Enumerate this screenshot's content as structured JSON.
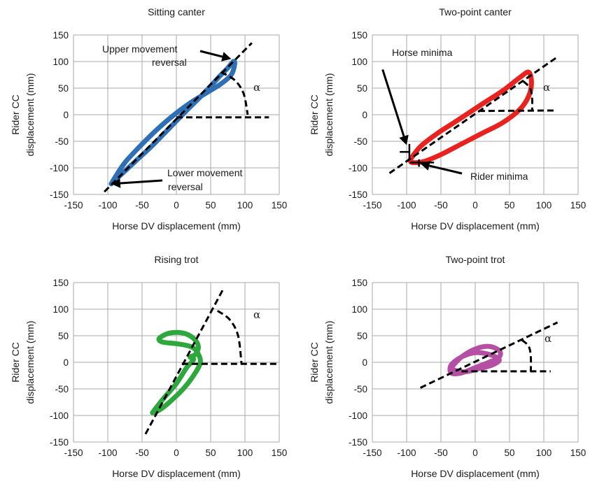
{
  "chart_data": [
    {
      "type": "line",
      "title": "Sitting canter",
      "xlabel": "Horse DV displacement (mm)",
      "ylabel": [
        "Rider CC",
        "displacement (mm)"
      ],
      "xlim": [
        -150,
        150
      ],
      "ylim": [
        -150,
        150
      ],
      "xticks": [
        -150,
        -100,
        -50,
        0,
        50,
        100,
        150
      ],
      "yticks": [
        -150,
        -100,
        -50,
        0,
        50,
        100,
        150
      ],
      "grid": true,
      "series": [
        {
          "color": "#2f6fb3",
          "x": [
            -95,
            -80,
            -60,
            -35,
            -10,
            15,
            40,
            60,
            75,
            83,
            85,
            80,
            65,
            45,
            20,
            -5,
            -30,
            -55,
            -75,
            -88,
            -95
          ],
          "y": [
            -130,
            -112,
            -88,
            -58,
            -25,
            8,
            40,
            68,
            88,
            100,
            95,
            75,
            58,
            42,
            22,
            -2,
            -30,
            -62,
            -90,
            -115,
            -130
          ]
        }
      ],
      "reference_lines": {
        "fit": {
          "x": [
            -105,
            110
          ],
          "y": [
            -145,
            135
          ]
        },
        "baseline": {
          "x": [
            0,
            135
          ],
          "y": [
            -5,
            -5
          ]
        },
        "arc": {
          "x": [
            65,
            85,
            98,
            104
          ],
          "y": [
            80,
            65,
            40,
            0
          ]
        }
      },
      "annotations": [
        {
          "lines": [
            "Upper movement",
            "reversal"
          ],
          "arrow_to": [
            80,
            105
          ]
        },
        {
          "lines": [
            "Lower movement",
            "reversal"
          ],
          "arrow_to": [
            -95,
            -130
          ]
        },
        {
          "lines": [
            "α"
          ]
        }
      ]
    },
    {
      "type": "line",
      "title": "Two-point canter",
      "xlabel": "Horse DV displacement (mm)",
      "ylabel": [
        "Rider CC",
        "displacement (mm)"
      ],
      "xlim": [
        -150,
        150
      ],
      "ylim": [
        -150,
        150
      ],
      "xticks": [
        -150,
        -100,
        -50,
        0,
        50,
        100,
        150
      ],
      "yticks": [
        -150,
        -100,
        -50,
        0,
        50,
        100,
        150
      ],
      "grid": true,
      "series": [
        {
          "color": "#e8221e",
          "x": [
            -95,
            -80,
            -55,
            -25,
            10,
            40,
            65,
            78,
            82,
            78,
            65,
            40,
            10,
            -20,
            -50,
            -75,
            -92,
            -95
          ],
          "y": [
            -85,
            -60,
            -35,
            -10,
            20,
            45,
            70,
            80,
            60,
            35,
            10,
            -15,
            -35,
            -55,
            -75,
            -88,
            -90,
            -85
          ]
        }
      ],
      "reference_lines": {
        "fit": {
          "x": [
            -125,
            118
          ],
          "y": [
            -110,
            107
          ]
        },
        "baseline": {
          "x": [
            5,
            118
          ],
          "y": [
            7,
            8
          ]
        },
        "arc": {
          "x": [
            70,
            80,
            83,
            83
          ],
          "y": [
            63,
            50,
            30,
            8
          ]
        }
      },
      "minima_markers": [
        {
          "x": [
            -110,
            -95
          ],
          "y": [
            -70,
            -70
          ]
        },
        {
          "x": [
            -96,
            -96
          ],
          "y": [
            -55,
            -85
          ]
        },
        {
          "x": [
            -95,
            -60
          ],
          "y": [
            -90,
            -90
          ]
        },
        {
          "x": [
            -82,
            -82
          ],
          "y": [
            -84,
            -98
          ]
        }
      ],
      "annotations": [
        {
          "lines": [
            "Horse minima"
          ],
          "arrow_from": [
            -135,
            85
          ],
          "arrow_to": [
            -100,
            -57
          ]
        },
        {
          "lines": [
            "Rider minima"
          ],
          "arrow_to": [
            -80,
            -92
          ]
        },
        {
          "lines": [
            "α"
          ]
        }
      ]
    },
    {
      "type": "line",
      "title": "Rising trot",
      "xlabel": "Horse DV displacement (mm)",
      "ylabel": [
        "Rider CC",
        "displacement (mm)"
      ],
      "xlim": [
        -150,
        150
      ],
      "ylim": [
        -150,
        150
      ],
      "xticks": [
        -150,
        -100,
        -50,
        0,
        50,
        100,
        150
      ],
      "yticks": [
        -150,
        -100,
        -50,
        0,
        50,
        100,
        150
      ],
      "grid": true,
      "series": [
        {
          "color": "#2ea83d",
          "x": [
            -35,
            -20,
            0,
            15,
            25,
            20,
            28,
            32,
            25,
            10,
            -10,
            -25,
            -20,
            0,
            20,
            30,
            35,
            25,
            10,
            -10,
            -25,
            -35
          ],
          "y": [
            -95,
            -70,
            -40,
            -10,
            5,
            10,
            15,
            30,
            45,
            55,
            55,
            45,
            38,
            35,
            30,
            20,
            0,
            -25,
            -50,
            -75,
            -90,
            -95
          ]
        }
      ],
      "reference_lines": {
        "fit": {
          "x": [
            -45,
            68
          ],
          "y": [
            -135,
            137
          ]
        },
        "baseline": {
          "x": [
            8,
            148
          ],
          "y": [
            -3,
            -3
          ]
        },
        "arc": {
          "x": [
            60,
            78,
            90,
            95
          ],
          "y": [
            97,
            80,
            50,
            -3
          ]
        }
      },
      "annotations": [
        {
          "lines": [
            "α"
          ]
        }
      ]
    },
    {
      "type": "line",
      "title": "Two-point trot",
      "xlabel": "Horse DV displacement (mm)",
      "ylabel": [
        "Rider CC",
        "displacement (mm)"
      ],
      "xlim": [
        -150,
        150
      ],
      "ylim": [
        -150,
        150
      ],
      "xticks": [
        -150,
        -100,
        -50,
        0,
        50,
        100,
        150
      ],
      "yticks": [
        -150,
        -100,
        -50,
        0,
        50,
        100,
        150
      ],
      "grid": true,
      "series": [
        {
          "color": "#b44fa4",
          "x": [
            -35,
            -20,
            0,
            20,
            35,
            35,
            20,
            0,
            -20,
            -35,
            -35,
            -20,
            0,
            20,
            35,
            25,
            5,
            -15,
            -30,
            -35
          ],
          "y": [
            -10,
            10,
            25,
            30,
            22,
            10,
            0,
            -10,
            -20,
            -20,
            -5,
            10,
            18,
            15,
            5,
            -5,
            -12,
            -18,
            -15,
            -10
          ]
        }
      ],
      "reference_lines": {
        "fit": {
          "x": [
            -80,
            120
          ],
          "y": [
            -48,
            75
          ]
        },
        "baseline": {
          "x": [
            -20,
            110
          ],
          "y": [
            -17,
            -17
          ]
        },
        "arc": {
          "x": [
            68,
            78,
            81,
            81
          ],
          "y": [
            42,
            30,
            10,
            -17
          ]
        }
      },
      "annotations": [
        {
          "lines": [
            "α"
          ]
        }
      ]
    }
  ]
}
